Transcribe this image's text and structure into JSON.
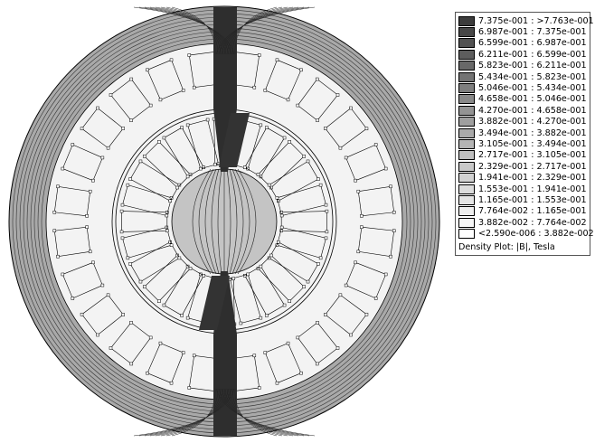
{
  "legend": {
    "entries": [
      {
        "label": "7.375e-001 : >7.763e-001",
        "color": "#3c3c3c"
      },
      {
        "label": "6.987e-001 : 7.375e-001",
        "color": "#474747"
      },
      {
        "label": "6.599e-001 : 6.987e-001",
        "color": "#525252"
      },
      {
        "label": "6.211e-001 : 6.599e-001",
        "color": "#5d5d5d"
      },
      {
        "label": "5.823e-001 : 6.211e-001",
        "color": "#686868"
      },
      {
        "label": "5.434e-001 : 5.823e-001",
        "color": "#737373"
      },
      {
        "label": "5.046e-001 : 5.434e-001",
        "color": "#7e7e7e"
      },
      {
        "label": "4.658e-001 : 5.046e-001",
        "color": "#898989"
      },
      {
        "label": "4.270e-001 : 4.658e-001",
        "color": "#949494"
      },
      {
        "label": "3.882e-001 : 4.270e-001",
        "color": "#9f9f9f"
      },
      {
        "label": "3.494e-001 : 3.882e-001",
        "color": "#aaaaaa"
      },
      {
        "label": "3.105e-001 : 3.494e-001",
        "color": "#b4b4b4"
      },
      {
        "label": "2.717e-001 : 3.105e-001",
        "color": "#bebebe"
      },
      {
        "label": "2.329e-001 : 2.717e-001",
        "color": "#c8c8c8"
      },
      {
        "label": "1.941e-001 : 2.329e-001",
        "color": "#d2d2d2"
      },
      {
        "label": "1.553e-001 : 1.941e-001",
        "color": "#dcdcdc"
      },
      {
        "label": "1.165e-001 : 1.553e-001",
        "color": "#e5e5e5"
      },
      {
        "label": "7.764e-002 : 1.165e-001",
        "color": "#eeeeee"
      },
      {
        "label": "3.882e-002 : 7.764e-002",
        "color": "#f6f6f6"
      },
      {
        "label": "<2.590e-006 : 3.882e-002",
        "color": "#ffffff"
      }
    ],
    "caption": "Density Plot: |B|, Tesla"
  }
}
